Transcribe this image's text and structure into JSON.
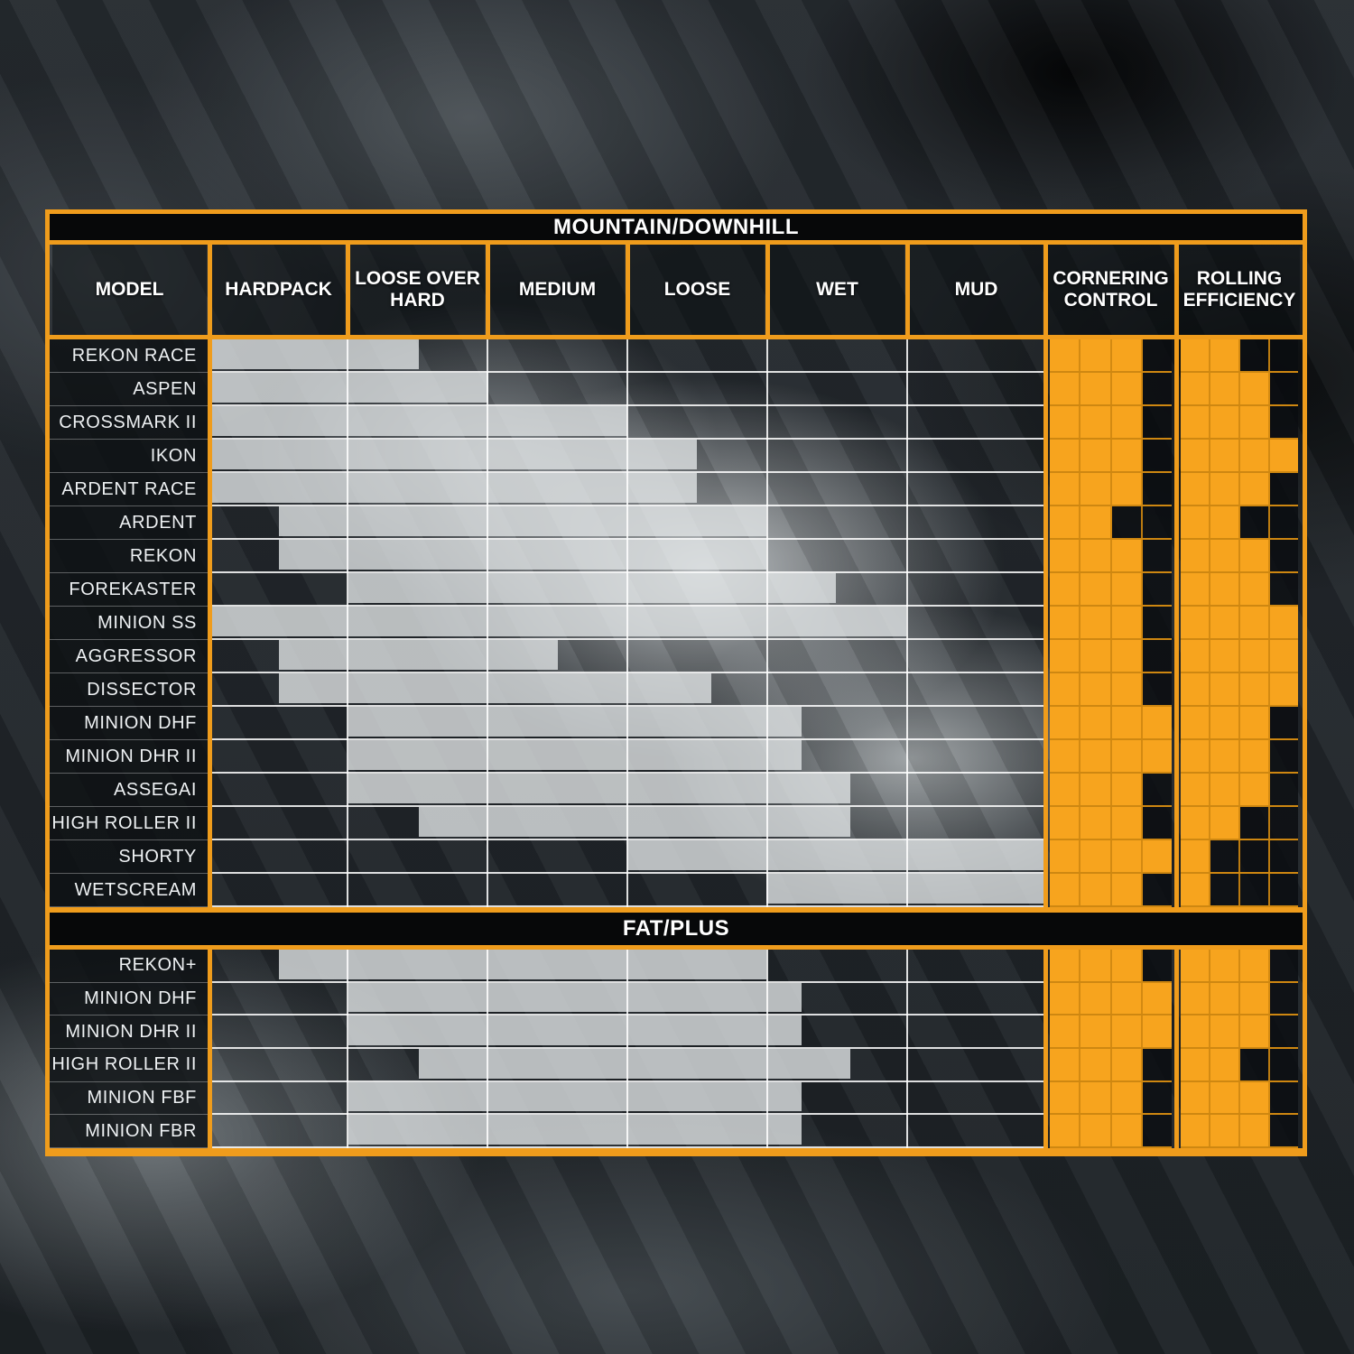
{
  "chart_data": {
    "type": "table",
    "rating_max": 4,
    "span_units": "terrain columns: 0 = start of HARDPACK, 6 = end of MUD",
    "columns": [
      "MODEL",
      "HARDPACK",
      "LOOSE OVER HARD",
      "MEDIUM",
      "LOOSE",
      "WET",
      "MUD",
      "CORNERING CONTROL",
      "ROLLING EFFICIENCY"
    ],
    "sections": [
      {
        "title": "MOUNTAIN/DOWNHILL",
        "rows": [
          {
            "model": "REKON RACE",
            "span": [
              0,
              1.5
            ],
            "cornering": 3,
            "rolling": 2
          },
          {
            "model": "ASPEN",
            "span": [
              0,
              2
            ],
            "cornering": 3,
            "rolling": 3
          },
          {
            "model": "CROSSMARK II",
            "span": [
              0,
              3
            ],
            "cornering": 3,
            "rolling": 3
          },
          {
            "model": "IKON",
            "span": [
              0,
              3.5
            ],
            "cornering": 3,
            "rolling": 4
          },
          {
            "model": "ARDENT RACE",
            "span": [
              0,
              3.5
            ],
            "cornering": 3,
            "rolling": 3
          },
          {
            "model": "ARDENT",
            "span": [
              0.5,
              4
            ],
            "cornering": 2,
            "rolling": 2
          },
          {
            "model": "REKON",
            "span": [
              0.5,
              4
            ],
            "cornering": 3,
            "rolling": 3
          },
          {
            "model": "FOREKASTER",
            "span": [
              1,
              4.5
            ],
            "cornering": 3,
            "rolling": 3
          },
          {
            "model": "MINION SS",
            "span": [
              0,
              5
            ],
            "cornering": 3,
            "rolling": 4
          },
          {
            "model": "AGGRESSOR",
            "span": [
              0.5,
              2.5
            ],
            "cornering": 3,
            "rolling": 4
          },
          {
            "model": "DISSECTOR",
            "span": [
              0.5,
              3.6
            ],
            "cornering": 3,
            "rolling": 4
          },
          {
            "model": "MINION DHF",
            "span": [
              1,
              4.25
            ],
            "cornering": 4,
            "rolling": 3
          },
          {
            "model": "MINION DHR II",
            "span": [
              1,
              4.25
            ],
            "cornering": 4,
            "rolling": 3
          },
          {
            "model": "ASSEGAI",
            "span": [
              1,
              4.6
            ],
            "cornering": 3,
            "rolling": 3
          },
          {
            "model": "HIGH ROLLER II",
            "span": [
              1.5,
              4.6
            ],
            "cornering": 3,
            "rolling": 2
          },
          {
            "model": "SHORTY",
            "span": [
              3,
              6
            ],
            "cornering": 4,
            "rolling": 1
          },
          {
            "model": "WETSCREAM",
            "span": [
              4,
              6
            ],
            "cornering": 3,
            "rolling": 1
          }
        ]
      },
      {
        "title": "FAT/PLUS",
        "rows": [
          {
            "model": "REKON+",
            "span": [
              0.5,
              4
            ],
            "cornering": 3,
            "rolling": 3
          },
          {
            "model": "MINION DHF",
            "span": [
              1,
              4.25
            ],
            "cornering": 4,
            "rolling": 3
          },
          {
            "model": "MINION DHR II",
            "span": [
              1,
              4.25
            ],
            "cornering": 4,
            "rolling": 3
          },
          {
            "model": "HIGH ROLLER II",
            "span": [
              1.5,
              4.6
            ],
            "cornering": 3,
            "rolling": 2
          },
          {
            "model": "MINION FBF",
            "span": [
              1,
              4.25
            ],
            "cornering": 3,
            "rolling": 3
          },
          {
            "model": "MINION FBR",
            "span": [
              1,
              4.25
            ],
            "cornering": 3,
            "rolling": 3
          }
        ]
      }
    ]
  },
  "colors": {
    "frame_orange": "#EF9C1C",
    "rating_filled_orange": "#F7A41E",
    "rating_grid_orange": "#CE8711",
    "bar_gray": "#E0E3E5",
    "title_bar_black": "#070809",
    "text_white": "#FFFFFF"
  }
}
